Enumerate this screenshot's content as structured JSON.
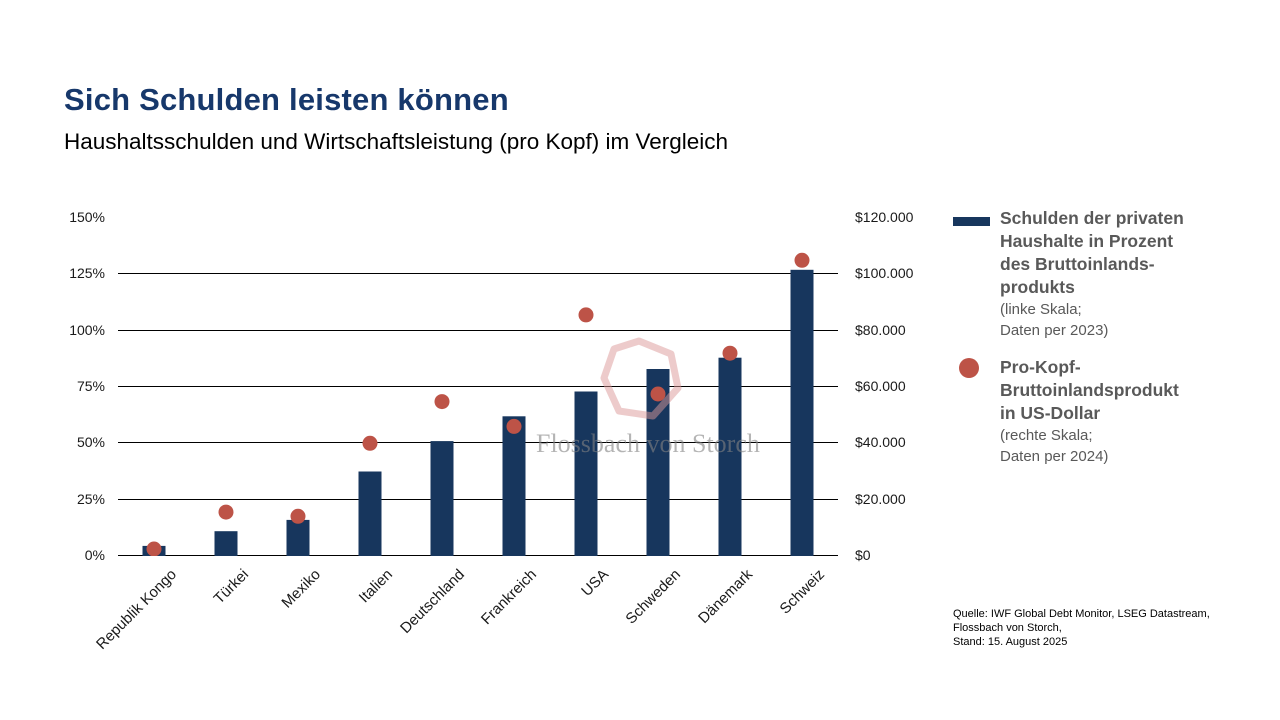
{
  "header": {
    "title": "Sich Schulden leisten können",
    "subtitle": "Haushaltsschulden und Wirtschaftsleistung (pro Kopf) im Vergleich"
  },
  "colors": {
    "title": "#17386B",
    "bar": "#17365D",
    "dot": "#BD5347",
    "grid": "#000000",
    "tick_text": "#1a1a1a",
    "legend_text": "#595959",
    "watermark_text": "#828282",
    "watermark_logo": "#DB9797"
  },
  "chart_data": {
    "type": "bar",
    "title": "Sich Schulden leisten können",
    "subtitle": "Haushaltsschulden und Wirtschaftsleistung (pro Kopf) im Vergleich",
    "categories": [
      "Republik Kongo",
      "Türkei",
      "Mexiko",
      "Italien",
      "Deutschland",
      "Frankreich",
      "USA",
      "Schweden",
      "Dänemark",
      "Schweiz"
    ],
    "series": [
      {
        "name": "Schulden der privaten Haushalte in Prozent des Bruttoinlandsprodukts",
        "type": "bar",
        "axis": "left",
        "values": [
          4.5,
          11,
          16,
          37.5,
          51,
          62,
          73,
          83,
          88,
          127
        ]
      },
      {
        "name": "Pro-Kopf-Bruttoinlandsprodukt in US-Dollar",
        "type": "scatter",
        "axis": "right",
        "values": [
          2500,
          15600,
          14100,
          40000,
          54800,
          46000,
          85600,
          57500,
          72000,
          105000
        ]
      }
    ],
    "left_axis": {
      "min": 0,
      "max": 150,
      "step": 25,
      "unit": "%",
      "tick_labels": [
        "0%",
        "25%",
        "50%",
        "75%",
        "100%",
        "125%",
        "150%"
      ]
    },
    "right_axis": {
      "min": 0,
      "max": 120000,
      "step": 20000,
      "unit": "$",
      "tick_labels": [
        "$0",
        "$20.000",
        "$40.000",
        "$60.000",
        "$80.000",
        "$100.000",
        "$120.000"
      ]
    },
    "grid": true,
    "legend_position": "right",
    "xlabel_rotation": -45
  },
  "legend": {
    "items": [
      {
        "swatch": "bar",
        "title": "Schulden der privaten\nHaushalte in Prozent\ndes Bruttoinlands-\nprodukts",
        "note": "(linke Skala;\nDaten per 2023)"
      },
      {
        "swatch": "dot",
        "title": "Pro-Kopf-\nBruttoinlandsprodukt\nin US-Dollar",
        "note": "(rechte Skala;\nDaten per 2024)"
      }
    ]
  },
  "watermark": {
    "text": "Flossbach von Storch",
    "logo": "pentagon-logo"
  },
  "source": "Quelle: IWF Global Debt Monitor, LSEG Datastream,\nFlossbach von Storch,\nStand: 15. August 2025"
}
